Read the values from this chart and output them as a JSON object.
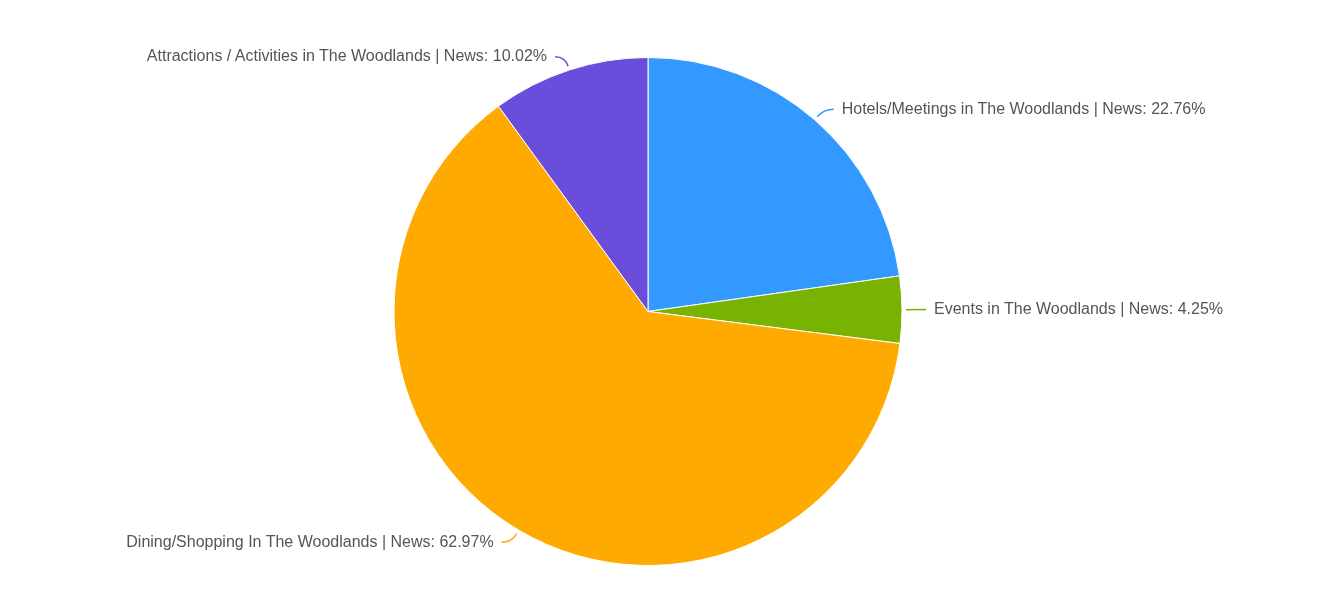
{
  "chart_data": {
    "type": "pie",
    "categories": [
      "Hotels/Meetings in The Woodlands | News",
      "Events in The Woodlands | News",
      "Dining/Shopping In The Woodlands | News",
      "Attractions / Activities in The Woodlands | News"
    ],
    "values": [
      22.76,
      4.25,
      62.97,
      10.02
    ],
    "value_labels": [
      "22.76%",
      "4.25%",
      "62.97%",
      "10.02%"
    ],
    "colors": [
      "#3399ff",
      "#77b300",
      "#ffaa00",
      "#6b4ddb"
    ],
    "legend": false
  }
}
